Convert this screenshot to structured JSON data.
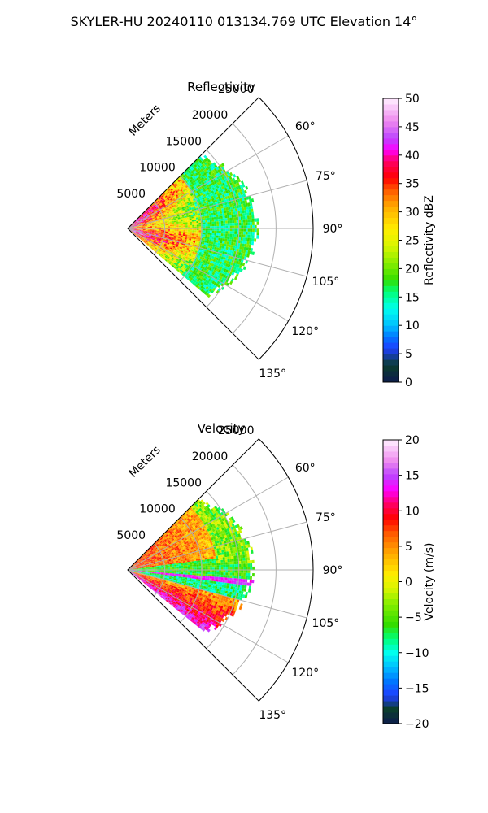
{
  "title": "SKYLER-HU  20240110  013134.769 UTC Elevation 14°",
  "chart_data": [
    {
      "type": "heatmap",
      "subtype": "polar-sector-ppi",
      "title": "Reflectivity",
      "range_label": "Meters",
      "range_ticks": [
        5000,
        10000,
        15000,
        20000,
        25000
      ],
      "range_tick_labels": [
        "5000",
        "10000",
        "15000",
        "20000",
        "25000"
      ],
      "range_lim": [
        0,
        25000
      ],
      "azimuth_lim": [
        45,
        135
      ],
      "azimuth_ticks": [
        60,
        75,
        90,
        105,
        120,
        135
      ],
      "azimuth_tick_labels": [
        "60°",
        "75°",
        "90°",
        "105°",
        "120°",
        "135°"
      ],
      "grid": true,
      "colorbar": {
        "label": "Reflectivity dBZ",
        "range": [
          0,
          50
        ],
        "ticks": [
          0,
          5,
          10,
          15,
          20,
          25,
          30,
          35,
          40,
          45,
          50
        ],
        "tick_labels": [
          "0",
          "5",
          "10",
          "15",
          "20",
          "25",
          "30",
          "35",
          "40",
          "45",
          "50"
        ]
      },
      "colormap_stops": [
        {
          "value": 0,
          "color": "#0d1b4d"
        },
        {
          "value": 3,
          "color": "#0b3d2e"
        },
        {
          "value": 6,
          "color": "#1f3fff"
        },
        {
          "value": 8,
          "color": "#0077ff"
        },
        {
          "value": 10,
          "color": "#00bfff"
        },
        {
          "value": 13,
          "color": "#00ffee"
        },
        {
          "value": 16,
          "color": "#00ff77"
        },
        {
          "value": 18,
          "color": "#33dd00"
        },
        {
          "value": 21,
          "color": "#88ee00"
        },
        {
          "value": 24,
          "color": "#d8f500"
        },
        {
          "value": 27,
          "color": "#ffee00"
        },
        {
          "value": 31,
          "color": "#ffaa00"
        },
        {
          "value": 34,
          "color": "#ff5500"
        },
        {
          "value": 36,
          "color": "#ff0000"
        },
        {
          "value": 39,
          "color": "#ff0066"
        },
        {
          "value": 41,
          "color": "#ff00ff"
        },
        {
          "value": 43,
          "color": "#bb44ff"
        },
        {
          "value": 46,
          "color": "#ee88ee"
        },
        {
          "value": 50,
          "color": "#fff0ff"
        }
      ],
      "field_profile": {
        "azimuth_extent": [
          45,
          130
        ],
        "max_range_m": [
          14000,
          17500
        ],
        "echo_range_m": [
          0,
          17500
        ],
        "core_dbz": [
          28,
          40
        ],
        "edge_dbz": [
          16,
          22
        ]
      }
    },
    {
      "type": "heatmap",
      "subtype": "polar-sector-ppi",
      "title": "Velocity",
      "range_label": "Meters",
      "range_ticks": [
        5000,
        10000,
        15000,
        20000,
        25000
      ],
      "range_tick_labels": [
        "5000",
        "10000",
        "15000",
        "20000",
        "25000"
      ],
      "range_lim": [
        0,
        25000
      ],
      "azimuth_lim": [
        45,
        135
      ],
      "azimuth_ticks": [
        60,
        75,
        90,
        105,
        120,
        135
      ],
      "azimuth_tick_labels": [
        "60°",
        "75°",
        "90°",
        "105°",
        "120°",
        "135°"
      ],
      "grid": true,
      "colorbar": {
        "label": "Velocity (m/s)",
        "range": [
          -20,
          20
        ],
        "ticks": [
          -20,
          -15,
          -10,
          -5,
          0,
          5,
          10,
          15,
          20
        ],
        "tick_labels": [
          "−20",
          "−15",
          "−10",
          "−5",
          "0",
          "5",
          "10",
          "15",
          "20"
        ]
      },
      "colormap_stops": [
        {
          "value": -20,
          "color": "#0d1b4d"
        },
        {
          "value": -18,
          "color": "#0b3d2e"
        },
        {
          "value": -16,
          "color": "#1f3fff"
        },
        {
          "value": -14,
          "color": "#0077ff"
        },
        {
          "value": -12,
          "color": "#00bfff"
        },
        {
          "value": -10,
          "color": "#00ffee"
        },
        {
          "value": -8,
          "color": "#00ff77"
        },
        {
          "value": -6,
          "color": "#33dd00"
        },
        {
          "value": -3,
          "color": "#88ee00"
        },
        {
          "value": -1,
          "color": "#d8f500"
        },
        {
          "value": 1,
          "color": "#ffee00"
        },
        {
          "value": 4,
          "color": "#ffaa00"
        },
        {
          "value": 7,
          "color": "#ff5500"
        },
        {
          "value": 9,
          "color": "#ff0000"
        },
        {
          "value": 11,
          "color": "#ff0066"
        },
        {
          "value": 13,
          "color": "#ff00ff"
        },
        {
          "value": 15,
          "color": "#bb44ff"
        },
        {
          "value": 17,
          "color": "#ee88ee"
        },
        {
          "value": 20,
          "color": "#fff0ff"
        }
      ],
      "field_profile": {
        "azimuth_extent": [
          45,
          128
        ],
        "max_range_m": [
          13500,
          17000
        ],
        "north_sector_ms": [
          2,
          9
        ],
        "south_band_ms": [
          3,
          15
        ],
        "gap_ms": [
          -9,
          -4
        ]
      }
    }
  ]
}
